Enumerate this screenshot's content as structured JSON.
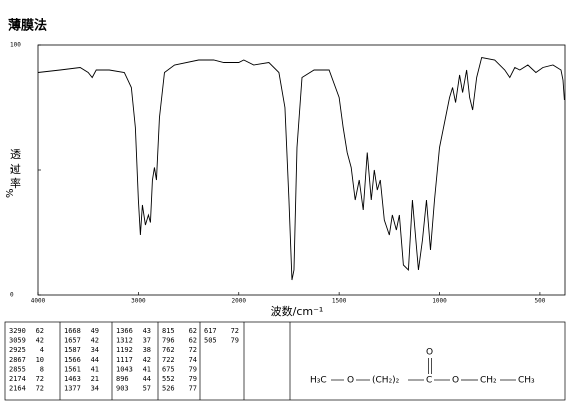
{
  "chart_data": {
    "type": "line",
    "title": "薄膜法",
    "xlabel": "波数/cm⁻¹",
    "ylabel": [
      "透",
      "过",
      "率",
      "%"
    ],
    "xlim": [
      4000,
      375
    ],
    "ylim": [
      0,
      100
    ],
    "xticks": [
      4000,
      3000,
      2000,
      1500,
      1000,
      500
    ],
    "yticks": [
      0,
      50,
      100
    ],
    "x_scale_break": 2000,
    "x_scale_stretch": 2,
    "color": "#000000",
    "x": [
      4000,
      3780,
      3580,
      3500,
      3460,
      3420,
      3290,
      3140,
      3070,
      3030,
      3000,
      2980,
      2960,
      2930,
      2900,
      2880,
      2860,
      2840,
      2820,
      2790,
      2740,
      2640,
      2400,
      2250,
      2150,
      2080,
      2000,
      1975,
      1925,
      1850,
      1800,
      1770,
      1750,
      1735,
      1725,
      1710,
      1685,
      1625,
      1550,
      1500,
      1480,
      1460,
      1440,
      1420,
      1400,
      1380,
      1360,
      1340,
      1325,
      1310,
      1295,
      1275,
      1250,
      1235,
      1215,
      1200,
      1180,
      1155,
      1135,
      1120,
      1105,
      1085,
      1065,
      1045,
      1025,
      1000,
      975,
      950,
      935,
      920,
      900,
      885,
      865,
      850,
      835,
      815,
      790,
      725,
      675,
      650,
      625,
      600,
      560,
      520,
      485,
      435,
      395,
      385,
      378
    ],
    "y": [
      89,
      90,
      91,
      89,
      87,
      90,
      90,
      89,
      83,
      67,
      38,
      24,
      36,
      28,
      32,
      29,
      46,
      51,
      46,
      71,
      89,
      92,
      94,
      94,
      93,
      93,
      93,
      94,
      92,
      93,
      89,
      75,
      38,
      6,
      10,
      59,
      87,
      90,
      90,
      79,
      67,
      57,
      51,
      38,
      46,
      34,
      57,
      38,
      50,
      42,
      46,
      30,
      24,
      32,
      26,
      32,
      12,
      10,
      38,
      24,
      10,
      22,
      38,
      18,
      38,
      59,
      69,
      79,
      83,
      77,
      88,
      81,
      90,
      79,
      74,
      87,
      95,
      94,
      90,
      87,
      91,
      90,
      92,
      89,
      91,
      92,
      90,
      86,
      78
    ]
  },
  "peak_table": {
    "columns": [
      [
        [
          3290,
          62
        ],
        [
          3059,
          42
        ],
        [
          2925,
          4
        ],
        [
          2867,
          10
        ],
        [
          2855,
          8
        ],
        [
          2174,
          72
        ],
        [
          2164,
          72
        ]
      ],
      [
        [
          1668,
          49
        ],
        [
          1657,
          42
        ],
        [
          1587,
          34
        ],
        [
          1566,
          44
        ],
        [
          1561,
          41
        ],
        [
          1463,
          21
        ],
        [
          1377,
          34
        ]
      ],
      [
        [
          1366,
          43
        ],
        [
          1312,
          37
        ],
        [
          1192,
          38
        ],
        [
          1117,
          42
        ],
        [
          1043,
          41
        ],
        [
          896,
          44
        ],
        [
          903,
          57
        ]
      ],
      [
        [
          815,
          62
        ],
        [
          796,
          62
        ],
        [
          762,
          72
        ],
        [
          722,
          74
        ],
        [
          675,
          79
        ],
        [
          552,
          79
        ],
        [
          526,
          77
        ]
      ],
      [
        [
          617,
          72
        ],
        [
          505,
          79
        ]
      ]
    ],
    "structure": {
      "groups": [
        "H₃C",
        "O",
        "(CH₂)₂",
        "C",
        "O",
        "CH₂",
        "CH₃"
      ],
      "carbonyl": "O"
    }
  }
}
